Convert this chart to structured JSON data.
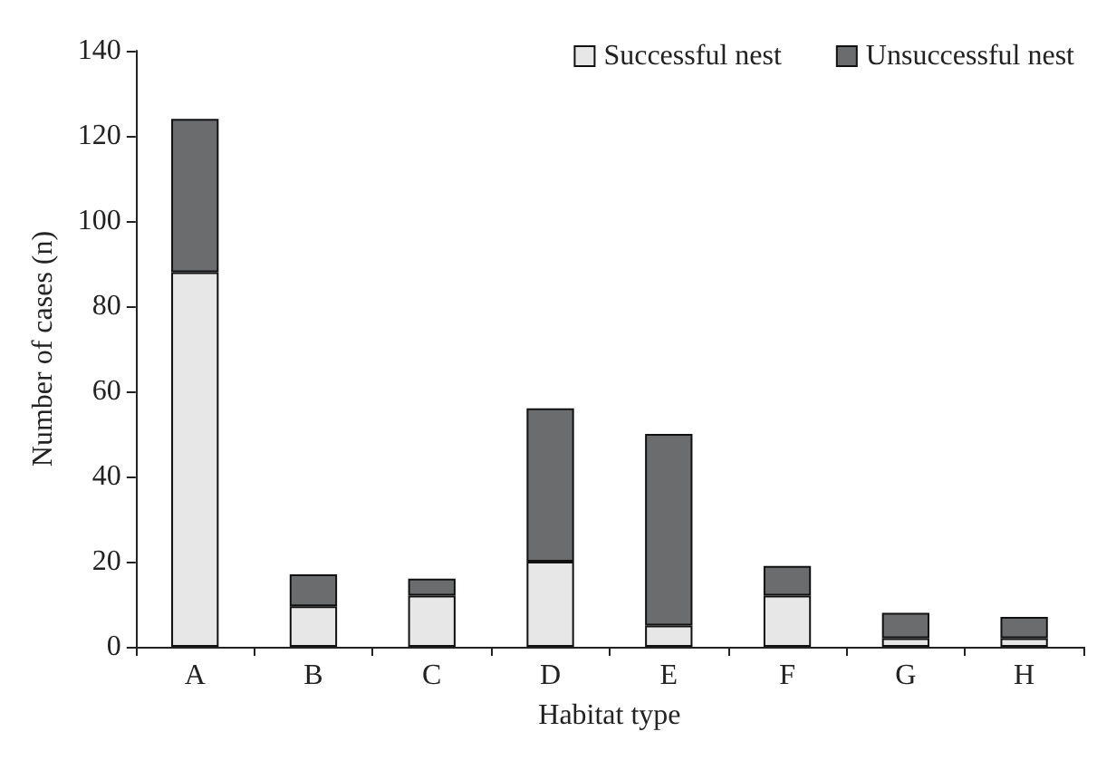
{
  "chart_data": {
    "type": "bar",
    "stacked": true,
    "xlabel": "Habitat type",
    "ylabel": "Number of cases (n)",
    "categories": [
      "A",
      "B",
      "C",
      "D",
      "E",
      "F",
      "G",
      "H"
    ],
    "series": [
      {
        "name": "Successful nest",
        "color": "#e6e7e6",
        "values": [
          88,
          9.5,
          12,
          20,
          5,
          12,
          2,
          2
        ]
      },
      {
        "name": "Unsuccessful nest",
        "color": "#6b6c6e",
        "values": [
          36,
          7.5,
          4,
          36,
          45,
          7,
          6,
          5
        ]
      }
    ],
    "ylim": [
      0,
      140
    ],
    "yticks": [
      0,
      20,
      40,
      60,
      80,
      100,
      120,
      140
    ],
    "grid": false,
    "legend": "top right"
  }
}
